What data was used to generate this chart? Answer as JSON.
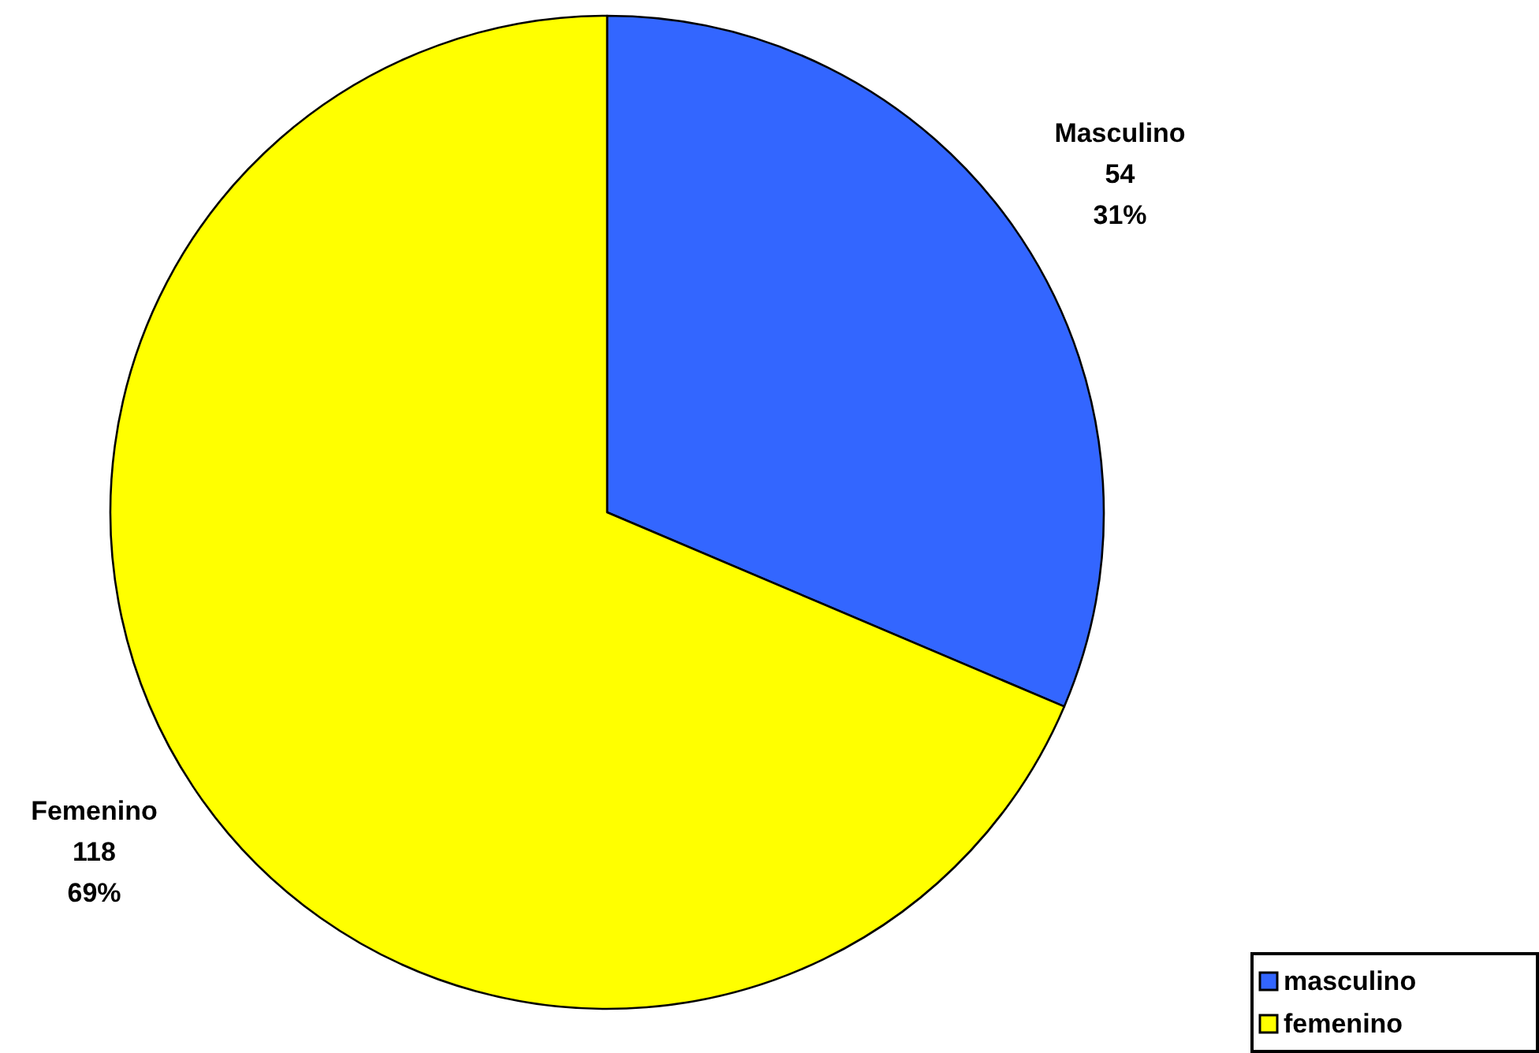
{
  "chart_data": {
    "type": "pie",
    "categories": [
      "masculino",
      "femenino"
    ],
    "values": [
      54,
      118
    ],
    "colors": [
      "#3366ff",
      "#ffff00"
    ],
    "value_labels": [
      "Masculino\n54\n31%",
      "Femenino\n118\n69%"
    ],
    "legend": "bottom right"
  }
}
